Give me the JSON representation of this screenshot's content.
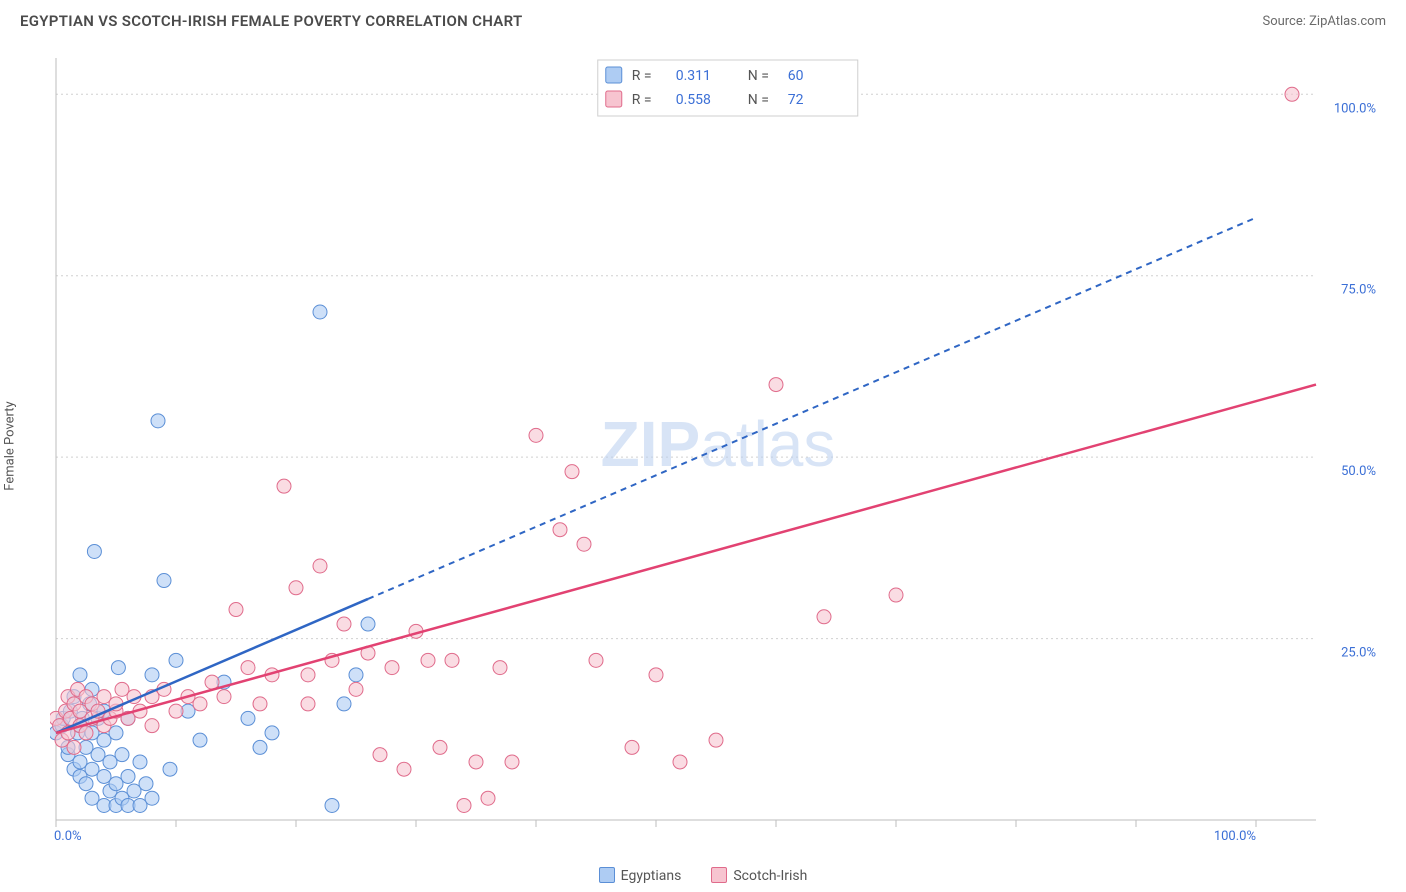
{
  "title": "EGYPTIAN VS SCOTCH-IRISH FEMALE POVERTY CORRELATION CHART",
  "source": "Source: ZipAtlas.com",
  "ylabel": "Female Poverty",
  "watermark": {
    "bold": "ZIP",
    "rest": "atlas"
  },
  "chart": {
    "type": "scatter",
    "xlim": [
      0,
      105
    ],
    "ylim": [
      0,
      105
    ],
    "grid_y": [
      25,
      50,
      75,
      100
    ],
    "xticks": [
      0,
      10,
      20,
      30,
      40,
      50,
      60,
      70,
      80,
      90,
      100
    ],
    "ytick_labels": [
      {
        "v": 100,
        "t": "100.0%"
      },
      {
        "v": 75,
        "t": "75.0%"
      },
      {
        "v": 50,
        "t": "50.0%"
      },
      {
        "v": 25,
        "t": "25.0%"
      }
    ],
    "xlabel_left": {
      "v": 0,
      "t": "0.0%"
    },
    "xlabel_right": {
      "v": 100,
      "t": "100.0%"
    },
    "background_color": "#ffffff",
    "grid_color": "#d0d0d0",
    "axis_color": "#bdbdbd",
    "series": [
      {
        "name": "Egyptians",
        "marker_fill": "#aeccf3",
        "marker_stroke": "#5b8fd6",
        "marker_r": 7,
        "line_color": "#2f66c4",
        "line_dash": "6 5",
        "line_solid_until_x": 26,
        "trend": {
          "x1": 0,
          "y1": 12,
          "x2": 100,
          "y2": 83
        },
        "R": "0.311",
        "N": "60",
        "points": [
          [
            0,
            12
          ],
          [
            0.5,
            13
          ],
          [
            0.6,
            14
          ],
          [
            1,
            9
          ],
          [
            1,
            10
          ],
          [
            1.2,
            15
          ],
          [
            1.5,
            7
          ],
          [
            1.5,
            17
          ],
          [
            1.8,
            12
          ],
          [
            2,
            6
          ],
          [
            2,
            8
          ],
          [
            2,
            13
          ],
          [
            2,
            20
          ],
          [
            2.2,
            14
          ],
          [
            2.5,
            5
          ],
          [
            2.5,
            10
          ],
          [
            2.8,
            16
          ],
          [
            3,
            3
          ],
          [
            3,
            7
          ],
          [
            3,
            12
          ],
          [
            3,
            18
          ],
          [
            3.2,
            37
          ],
          [
            3.5,
            9
          ],
          [
            3.5,
            14
          ],
          [
            4,
            2
          ],
          [
            4,
            6
          ],
          [
            4,
            11
          ],
          [
            4,
            15
          ],
          [
            4.5,
            4
          ],
          [
            4.5,
            8
          ],
          [
            5,
            2
          ],
          [
            5,
            5
          ],
          [
            5,
            12
          ],
          [
            5.2,
            21
          ],
          [
            5.5,
            3
          ],
          [
            5.5,
            9
          ],
          [
            6,
            2
          ],
          [
            6,
            6
          ],
          [
            6,
            14
          ],
          [
            6.5,
            4
          ],
          [
            7,
            2
          ],
          [
            7,
            8
          ],
          [
            7.5,
            5
          ],
          [
            8,
            3
          ],
          [
            8,
            20
          ],
          [
            8.5,
            55
          ],
          [
            9,
            33
          ],
          [
            9.5,
            7
          ],
          [
            10,
            22
          ],
          [
            11,
            15
          ],
          [
            12,
            11
          ],
          [
            14,
            19
          ],
          [
            16,
            14
          ],
          [
            17,
            10
          ],
          [
            18,
            12
          ],
          [
            22,
            70
          ],
          [
            23,
            2
          ],
          [
            24,
            16
          ],
          [
            25,
            20
          ],
          [
            26,
            27
          ]
        ]
      },
      {
        "name": "Scotch-Irish",
        "marker_fill": "#f7c4d0",
        "marker_stroke": "#e06b8b",
        "marker_r": 7,
        "line_color": "#e24272",
        "line_dash": "",
        "line_solid_until_x": 105,
        "trend": {
          "x1": 0,
          "y1": 12,
          "x2": 105,
          "y2": 60
        },
        "R": "0.558",
        "N": "72",
        "points": [
          [
            0,
            14
          ],
          [
            0.3,
            13
          ],
          [
            0.5,
            11
          ],
          [
            0.8,
            15
          ],
          [
            1,
            12
          ],
          [
            1,
            17
          ],
          [
            1.2,
            14
          ],
          [
            1.5,
            10
          ],
          [
            1.5,
            16
          ],
          [
            1.8,
            18
          ],
          [
            2,
            13
          ],
          [
            2,
            15
          ],
          [
            2.5,
            12
          ],
          [
            2.5,
            17
          ],
          [
            3,
            14
          ],
          [
            3,
            16
          ],
          [
            3.5,
            15
          ],
          [
            4,
            13
          ],
          [
            4,
            17
          ],
          [
            4.5,
            14
          ],
          [
            5,
            15
          ],
          [
            5,
            16
          ],
          [
            5.5,
            18
          ],
          [
            6,
            14
          ],
          [
            6.5,
            17
          ],
          [
            7,
            15
          ],
          [
            8,
            13
          ],
          [
            8,
            17
          ],
          [
            9,
            18
          ],
          [
            10,
            15
          ],
          [
            11,
            17
          ],
          [
            12,
            16
          ],
          [
            13,
            19
          ],
          [
            14,
            17
          ],
          [
            15,
            29
          ],
          [
            16,
            21
          ],
          [
            17,
            16
          ],
          [
            18,
            20
          ],
          [
            19,
            46
          ],
          [
            20,
            32
          ],
          [
            21,
            16
          ],
          [
            21,
            20
          ],
          [
            22,
            35
          ],
          [
            23,
            22
          ],
          [
            24,
            27
          ],
          [
            25,
            18
          ],
          [
            26,
            23
          ],
          [
            27,
            9
          ],
          [
            28,
            21
          ],
          [
            29,
            7
          ],
          [
            30,
            26
          ],
          [
            31,
            22
          ],
          [
            32,
            10
          ],
          [
            33,
            22
          ],
          [
            34,
            2
          ],
          [
            35,
            8
          ],
          [
            36,
            3
          ],
          [
            37,
            21
          ],
          [
            38,
            8
          ],
          [
            40,
            53
          ],
          [
            42,
            40
          ],
          [
            43,
            48
          ],
          [
            44,
            38
          ],
          [
            45,
            22
          ],
          [
            48,
            10
          ],
          [
            50,
            20
          ],
          [
            52,
            8
          ],
          [
            55,
            11
          ],
          [
            60,
            60
          ],
          [
            64,
            28
          ],
          [
            70,
            31
          ],
          [
            103,
            100
          ]
        ]
      }
    ],
    "stats_box": {
      "bg": "#ffffff",
      "border": "#cfcfcf",
      "label_color": "#555555",
      "value_color": "#3b6fd6"
    }
  },
  "bottom_legend": [
    {
      "label": "Egyptians",
      "fill": "#aeccf3",
      "stroke": "#5b8fd6"
    },
    {
      "label": "Scotch-Irish",
      "fill": "#f7c4d0",
      "stroke": "#e06b8b"
    }
  ]
}
